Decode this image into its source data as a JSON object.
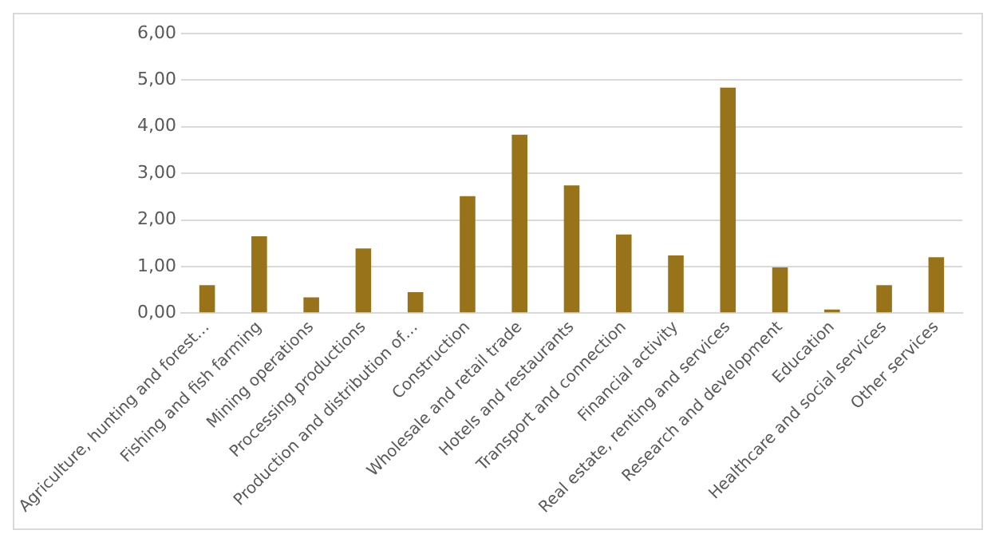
{
  "chart_data": {
    "type": "bar",
    "categories": [
      "Agriculture, hunting and forest…",
      "Fishing and fish farming",
      "Mining operations",
      "Processing productions",
      "Production and distribution of…",
      "Construction",
      "Wholesale and retail trade",
      "Hotels and restaurants",
      "Transport and connection",
      "Financial activity",
      "Real estate, renting and services",
      "Research and development",
      "Education",
      "Healthcare and social services",
      "Other services"
    ],
    "values": [
      0.6,
      1.65,
      0.34,
      1.39,
      0.45,
      2.51,
      3.83,
      2.74,
      1.69,
      1.24,
      4.84,
      0.98,
      0.08,
      0.6,
      1.2
    ],
    "color": "#98731a",
    "ylim": [
      0,
      6
    ],
    "yticks": [
      {
        "value": 0,
        "label": "0,00"
      },
      {
        "value": 1,
        "label": "1,00"
      },
      {
        "value": 2,
        "label": "2,00"
      },
      {
        "value": 3,
        "label": "3,00"
      },
      {
        "value": 4,
        "label": "4,00"
      },
      {
        "value": 5,
        "label": "5,00"
      },
      {
        "value": 6,
        "label": "6,00"
      }
    ],
    "grid": "y"
  }
}
